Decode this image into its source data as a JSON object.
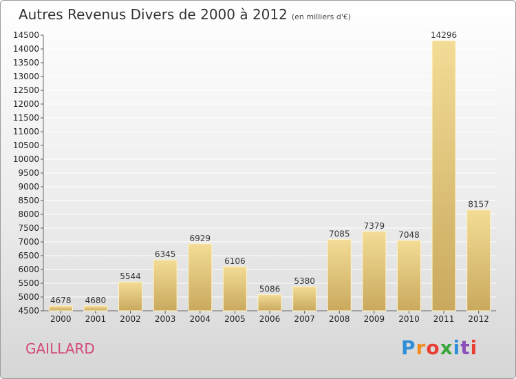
{
  "title": "Autres Revenus Divers de 2000 à 2012",
  "subtitle": "(en milliers d'€)",
  "commune": "GAILLARD",
  "brand": {
    "text": "Proxiti",
    "letters": [
      "P",
      "r",
      "o",
      "x",
      "i",
      "t",
      "i"
    ],
    "letter_colors": [
      "#2e8fd8",
      "#f28c1c",
      "#e83e33",
      "#3aa63a",
      "#2e8fd8",
      "#8a4fb8",
      "#e83e33"
    ]
  },
  "colors": {
    "bar_fill_top": "#f3dc96",
    "bar_fill_bottom": "#c9a95e",
    "bar_edge": "#fff3c8",
    "grid": "#ffffff",
    "axis_text": "#222222",
    "value_text": "#333333"
  },
  "chart_data": {
    "type": "bar",
    "title": "Autres Revenus Divers de 2000 à 2012",
    "subtitle": "(en milliers d'€)",
    "categories": [
      "2000",
      "2001",
      "2002",
      "2003",
      "2004",
      "2005",
      "2006",
      "2007",
      "2008",
      "2009",
      "2010",
      "2011",
      "2012"
    ],
    "values": [
      4678,
      4680,
      5544,
      6345,
      6929,
      6106,
      5086,
      5380,
      7085,
      7379,
      7048,
      14296,
      8157
    ],
    "value_labels": [
      "4678",
      "4680",
      "5544",
      "6345",
      "6929",
      "6106",
      "5086",
      "5380",
      "7085",
      "7379",
      "7048",
      "14296",
      "8157"
    ],
    "ylim": [
      4500,
      14500
    ],
    "yticks": [
      4500,
      5000,
      5500,
      6000,
      6500,
      7000,
      7500,
      8000,
      8500,
      9000,
      9500,
      10000,
      10500,
      11000,
      11500,
      12000,
      12500,
      13000,
      13500,
      14000,
      14500
    ],
    "ytick_labels": [
      "4500",
      "5000",
      "5500",
      "6000",
      "6500",
      "7000",
      "7500",
      "8000",
      "8500",
      "9000",
      "9500",
      "10000",
      "10500",
      "11000",
      "11500",
      "12000",
      "12500",
      "13000",
      "13500",
      "14000",
      "14500"
    ],
    "grid": true,
    "xlabel": "",
    "ylabel": ""
  }
}
